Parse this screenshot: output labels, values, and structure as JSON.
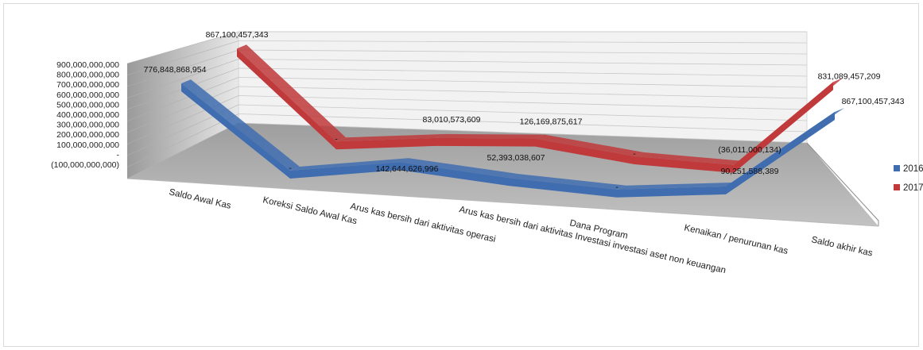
{
  "chart_data": {
    "type": "line",
    "title": "",
    "xlabel": "",
    "ylabel": "",
    "ylim": [
      -100000000000,
      900000000000
    ],
    "y_ticks": [
      "900,000,000,000",
      "800,000,000,000",
      "700,000,000,000",
      "600,000,000,000",
      "500,000,000,000",
      "400,000,000,000",
      "300,000,000,000",
      "200,000,000,000",
      "100,000,000,000",
      "-",
      "(100,000,000,000)"
    ],
    "categories": [
      "Saldo Awal Kas",
      "Koreksi Saldo Awal Kas",
      "Arus kas bersih dari aktivitas operasi",
      "Arus kas bersih dari aktivitas Investasi investasi aset  non keuangan",
      "Dana Program",
      "Kenaikan / penurunan kas",
      "Saldo akhir kas"
    ],
    "series": [
      {
        "name": "2016",
        "color": "#3F6DB0",
        "values": [
          776848868954,
          0,
          142644626996,
          52393038607,
          0,
          90251588389,
          867100457343
        ],
        "labels": [
          "776,848,868,954",
          "-",
          "142,644,626,996",
          "52,393,038,607",
          "-",
          "90,251,588,389",
          "867,100,457,343"
        ]
      },
      {
        "name": "2017",
        "color": "#C0393B",
        "values": [
          867100457343,
          0,
          83010573609,
          126169875617,
          0,
          -36011000134,
          831089457209
        ],
        "labels": [
          "867,100,457,343",
          "-",
          "83,010,573,609",
          "126,169,875,617",
          "-",
          "(36,011,000,134)",
          "831,089,457,209"
        ]
      }
    ],
    "legend": "right",
    "grid": true,
    "style": "3d"
  }
}
